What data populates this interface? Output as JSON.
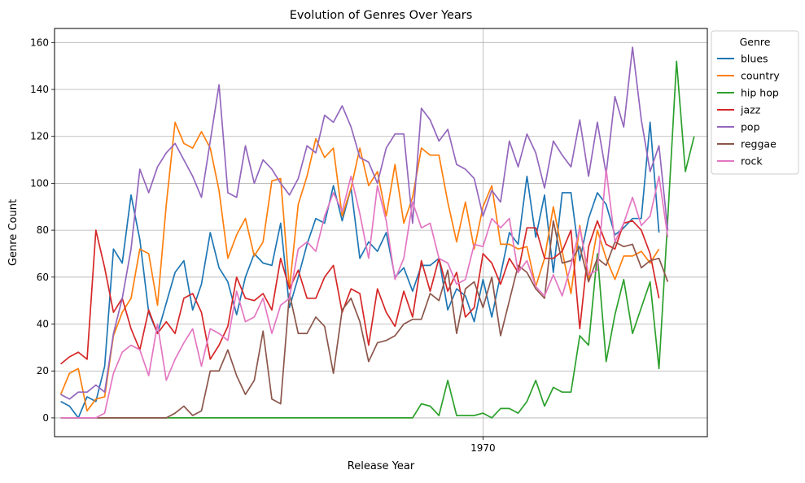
{
  "chart_data": {
    "type": "line",
    "title": "Evolution of Genres Over Years",
    "xlabel": "Release Year",
    "ylabel": "Genre Count",
    "x_ticks": [
      1970
    ],
    "y_ticks": [
      0,
      20,
      40,
      60,
      80,
      100,
      120,
      140,
      160
    ],
    "xlim": [
      1921.3,
      1995.5
    ],
    "ylim": [
      -8,
      166
    ],
    "grid": true,
    "legend": {
      "title": "Genre",
      "placement": "upper right, outside plot"
    },
    "x": [
      1922,
      1923,
      1924,
      1925,
      1926,
      1927,
      1928,
      1929,
      1930,
      1931,
      1932,
      1933,
      1934,
      1935,
      1936,
      1937,
      1938,
      1939,
      1940,
      1941,
      1942,
      1943,
      1944,
      1945,
      1946,
      1947,
      1948,
      1949,
      1950,
      1951,
      1952,
      1953,
      1954,
      1955,
      1956,
      1957,
      1958,
      1959,
      1960,
      1961,
      1962,
      1963,
      1964,
      1965,
      1966,
      1967,
      1968,
      1969,
      1970,
      1971,
      1972,
      1973,
      1974,
      1975,
      1976,
      1977,
      1978,
      1979,
      1980,
      1981,
      1982,
      1983,
      1984,
      1985,
      1986,
      1987,
      1988,
      1989,
      1990,
      1991,
      1992,
      1993,
      1994,
      1995
    ],
    "series": [
      {
        "name": "blues",
        "color": "#1f77b4",
        "values": [
          7,
          5,
          0,
          9,
          7,
          22,
          72,
          66,
          95,
          76,
          45,
          36,
          49,
          62,
          67,
          46,
          57,
          79,
          64,
          58,
          44,
          60,
          70,
          66,
          65,
          83,
          47,
          60,
          74,
          85,
          83,
          99,
          84,
          98,
          68,
          75,
          71,
          79,
          60,
          64,
          54,
          65,
          65,
          68,
          46,
          55,
          52,
          41,
          59,
          43,
          61,
          79,
          74,
          103,
          77,
          95,
          62,
          96,
          96,
          67,
          85,
          96,
          91,
          78,
          81,
          85,
          85,
          126,
          79,
          null,
          null,
          null,
          null,
          null
        ]
      },
      {
        "name": "country",
        "color": "#ff7f0e",
        "values": [
          10,
          19,
          21,
          3,
          8,
          9,
          35,
          45,
          51,
          72,
          70,
          48,
          91,
          126,
          117,
          115,
          122,
          115,
          97,
          68,
          78,
          85,
          69,
          75,
          101,
          102,
          55,
          91,
          103,
          119,
          111,
          115,
          86,
          98,
          115,
          99,
          105,
          86,
          108,
          83,
          94,
          115,
          112,
          112,
          92,
          75,
          92,
          72,
          90,
          99,
          74,
          74,
          72,
          73,
          56,
          68,
          90,
          71,
          53,
          82,
          59,
          80,
          68,
          59,
          69,
          69,
          71,
          66,
          72,
          null,
          null,
          null,
          null,
          null
        ]
      },
      {
        "name": "hip hop",
        "color": "#2ca02c",
        "values": [
          0,
          0,
          0,
          0,
          0,
          0,
          0,
          0,
          0,
          0,
          0,
          0,
          0,
          0,
          0,
          0,
          0,
          0,
          0,
          0,
          0,
          0,
          0,
          0,
          0,
          0,
          0,
          0,
          0,
          0,
          0,
          0,
          0,
          0,
          0,
          0,
          0,
          0,
          0,
          0,
          0,
          6,
          5,
          1,
          16,
          1,
          1,
          1,
          2,
          0,
          4,
          4,
          2,
          7,
          16,
          5,
          13,
          11,
          11,
          35,
          31,
          70,
          24,
          44,
          59,
          36,
          47,
          58,
          21,
          85,
          152,
          105,
          120,
          null
        ]
      },
      {
        "name": "jazz",
        "color": "#d62728",
        "values": [
          23,
          26,
          28,
          25,
          80,
          64,
          45,
          51,
          38,
          29,
          46,
          36,
          41,
          36,
          51,
          53,
          45,
          25,
          31,
          39,
          60,
          51,
          50,
          53,
          46,
          68,
          55,
          63,
          51,
          51,
          60,
          65,
          45,
          55,
          53,
          31,
          55,
          45,
          39,
          54,
          43,
          67,
          54,
          68,
          54,
          62,
          43,
          47,
          70,
          66,
          57,
          68,
          62,
          81,
          81,
          68,
          68,
          71,
          80,
          38,
          73,
          84,
          74,
          72,
          83,
          84,
          80,
          70,
          51,
          null,
          null,
          null,
          null,
          null
        ]
      },
      {
        "name": "pop",
        "color": "#9467bd",
        "values": [
          10,
          8,
          11,
          11,
          14,
          11,
          36,
          51,
          72,
          106,
          96,
          107,
          113,
          117,
          110,
          103,
          94,
          118,
          142,
          96,
          94,
          116,
          100,
          110,
          106,
          100,
          95,
          102,
          116,
          113,
          129,
          126,
          133,
          124,
          111,
          109,
          100,
          115,
          121,
          121,
          83,
          132,
          127,
          118,
          123,
          108,
          106,
          102,
          86,
          97,
          92,
          118,
          107,
          121,
          113,
          98,
          118,
          112,
          107,
          127,
          103,
          126,
          104,
          137,
          124,
          158,
          127,
          105,
          116,
          80,
          null,
          null,
          null,
          null
        ]
      },
      {
        "name": "reggae",
        "color": "#8c564b",
        "values": [
          0,
          0,
          0,
          0,
          0,
          0,
          0,
          0,
          0,
          0,
          0,
          0,
          0,
          2,
          5,
          1,
          3,
          20,
          20,
          29,
          18,
          10,
          16,
          37,
          8,
          6,
          53,
          36,
          36,
          43,
          39,
          19,
          46,
          51,
          41,
          24,
          32,
          33,
          35,
          40,
          42,
          42,
          53,
          50,
          63,
          36,
          55,
          58,
          47,
          60,
          35,
          50,
          65,
          62,
          55,
          51,
          84,
          66,
          67,
          73,
          58,
          68,
          65,
          75,
          73,
          74,
          64,
          67,
          68,
          58,
          null,
          null,
          null,
          null
        ]
      },
      {
        "name": "rock",
        "color": "#e377c2",
        "values": [
          0,
          0,
          0,
          0,
          0,
          2,
          19,
          28,
          31,
          29,
          18,
          40,
          16,
          25,
          32,
          38,
          22,
          38,
          36,
          33,
          54,
          41,
          43,
          51,
          36,
          48,
          51,
          72,
          75,
          71,
          86,
          96,
          88,
          103,
          87,
          68,
          99,
          84,
          59,
          68,
          92,
          81,
          83,
          68,
          66,
          57,
          59,
          74,
          73,
          85,
          81,
          85,
          62,
          67,
          56,
          52,
          61,
          52,
          65,
          81,
          61,
          63,
          106,
          75,
          83,
          94,
          82,
          86,
          103,
          77,
          null,
          null,
          null,
          null
        ]
      }
    ]
  }
}
